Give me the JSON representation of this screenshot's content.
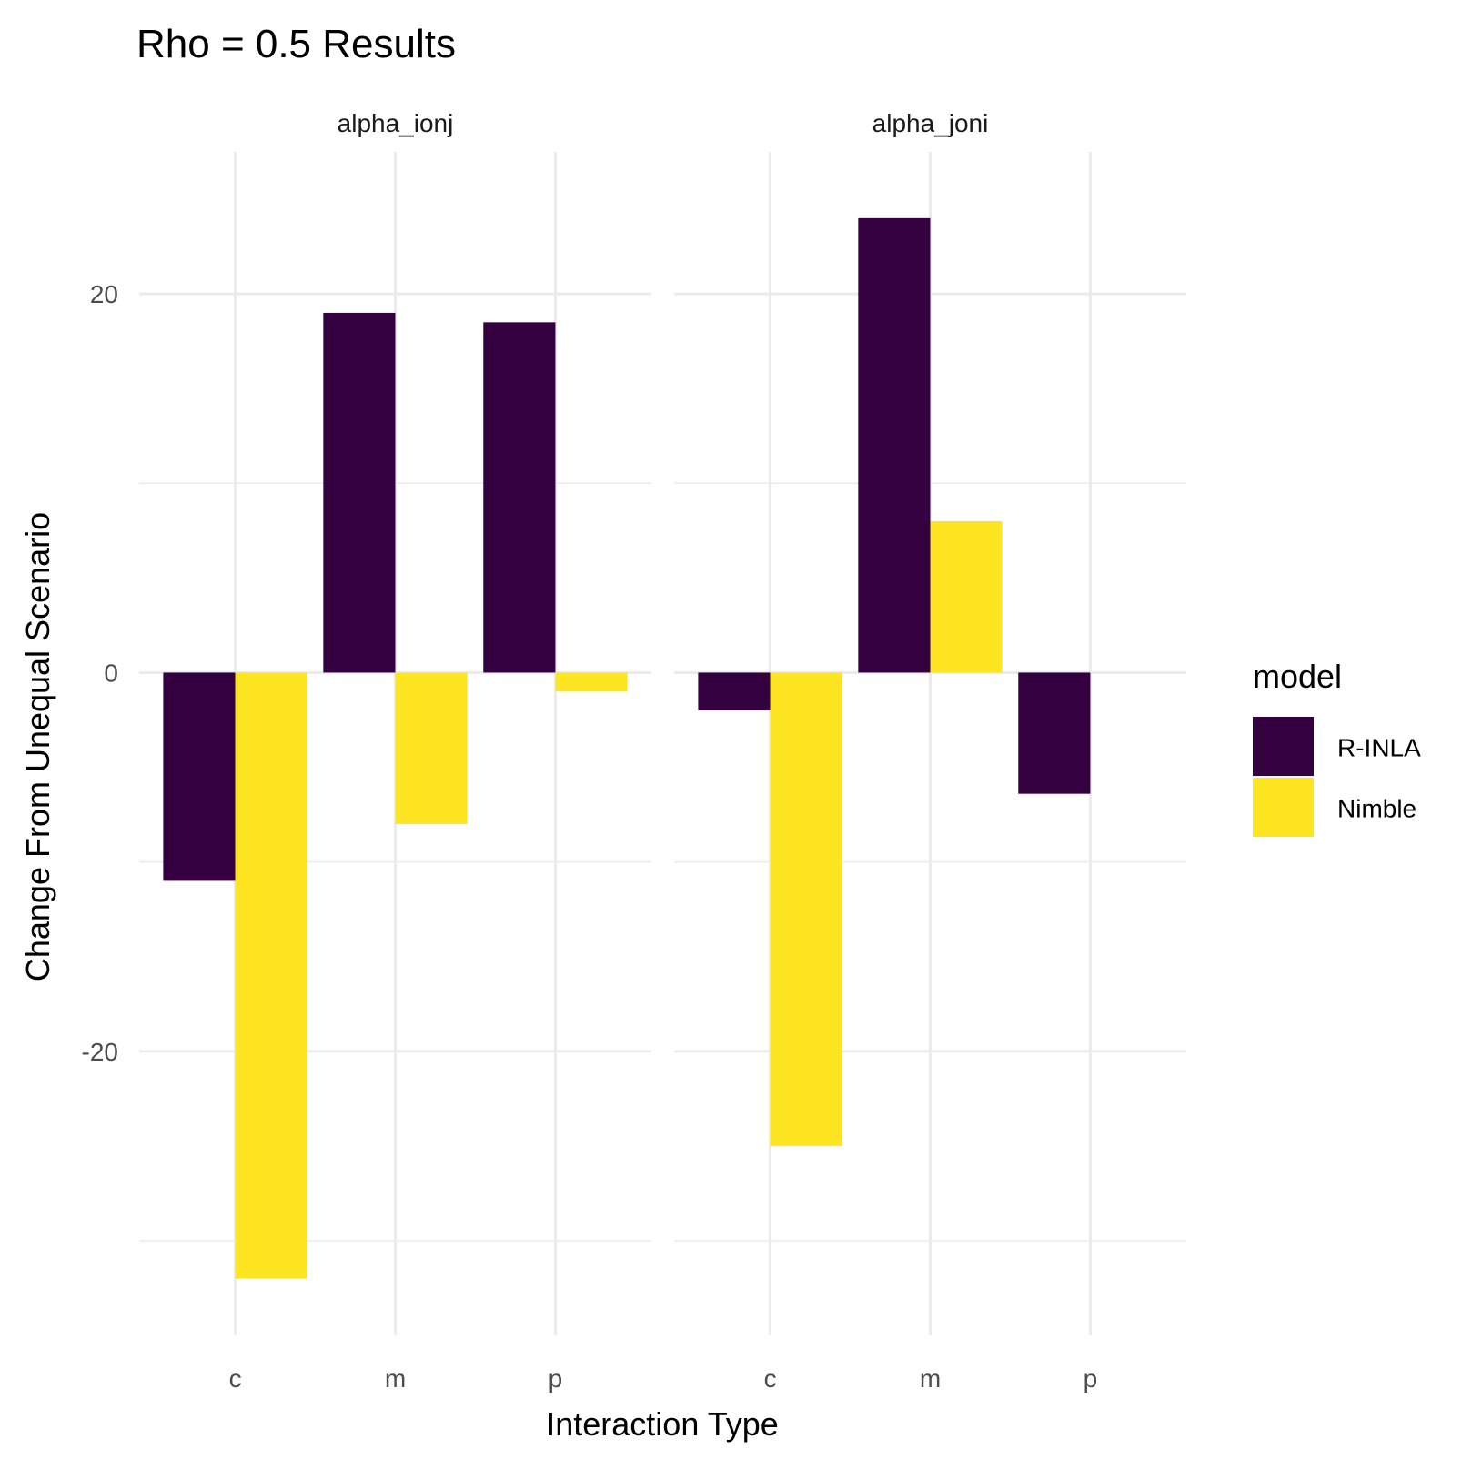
{
  "chart_data": {
    "type": "bar",
    "title": "Rho = 0.5 Results",
    "xlabel": "Interaction Type",
    "ylabel": "Change From Unequal Scenario",
    "categories": [
      "c",
      "m",
      "p"
    ],
    "ylim": [
      -35,
      27.5
    ],
    "yticks": [
      -20,
      0,
      20
    ],
    "yticks_minor": [
      -30,
      -10,
      10
    ],
    "grid": true,
    "legend": {
      "title": "model",
      "placement": "right",
      "entries": [
        "R-INLA",
        "Nimble"
      ]
    },
    "colors": {
      "R-INLA": "#35003f",
      "Nimble": "#fde522"
    },
    "facets": [
      {
        "label": "alpha_ionj",
        "series": [
          {
            "name": "R-INLA",
            "values": [
              -11,
              19,
              18.5
            ]
          },
          {
            "name": "Nimble",
            "values": [
              -32,
              -8,
              -1
            ]
          }
        ]
      },
      {
        "label": "alpha_joni",
        "series": [
          {
            "name": "R-INLA",
            "values": [
              -2,
              24,
              -6.4
            ]
          },
          {
            "name": "Nimble",
            "values": [
              -25,
              8,
              0
            ]
          }
        ]
      }
    ]
  }
}
